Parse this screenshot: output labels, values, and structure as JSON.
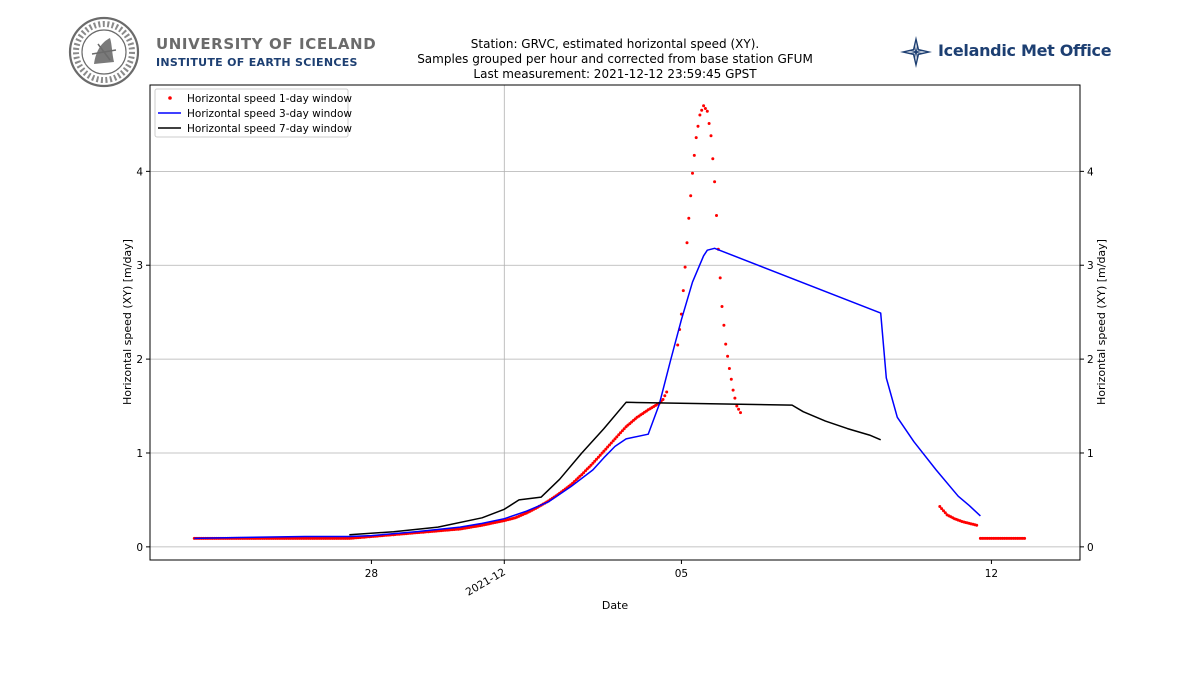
{
  "header": {
    "university_name": "UNIVERSITY OF ICELAND",
    "institute_name": "INSTITUTE OF EARTH SCIENCES",
    "met_office_name": "Icelandic Met Office",
    "seal_text": "SIGILLUM UNIVERSITATIS ISLANDIAE"
  },
  "chart_data": {
    "type": "line",
    "title_lines": [
      "Station: GRVC, estimated horizontal speed (XY).",
      "Samples grouped per hour and corrected from base station GFUM",
      "Last measurement: 2021-12-12 23:59:45 GPST"
    ],
    "xlabel": "Date",
    "ylabel_left": "Horizontal speed (XY) [m/day]",
    "ylabel_right": "Horizontal speed (XY) [m/day]",
    "x_range": [
      "2021-11-23",
      "2021-12-14"
    ],
    "ylim": [
      -0.14,
      4.92
    ],
    "x_ticks": [
      {
        "date": "2021-11-28",
        "label": "28",
        "rotated": false
      },
      {
        "date": "2021-12-01",
        "label": "2021-12",
        "rotated": true
      },
      {
        "date": "2021-12-05",
        "label": "05",
        "rotated": false
      },
      {
        "date": "2021-12-12",
        "label": "12",
        "rotated": false
      }
    ],
    "y_ticks": [
      0,
      1,
      2,
      3,
      4
    ],
    "grid": true,
    "legend_position": "top-left",
    "colors": {
      "series_1day": "#ff0000",
      "series_3day": "#0000ff",
      "series_7day": "#000000",
      "grid": "#b0b0b0"
    },
    "series": [
      {
        "name": "Horizontal speed 1-day window",
        "style": "scatter",
        "segments": [
          [
            [
              "2021-11-24 00:00",
              0.09
            ],
            [
              "2021-11-25 00:00",
              0.09
            ],
            [
              "2021-11-26 00:00",
              0.09
            ],
            [
              "2021-11-27 00:00",
              0.09
            ],
            [
              "2021-11-27 12:00",
              0.09
            ],
            [
              "2021-11-28 00:00",
              0.11
            ],
            [
              "2021-11-28 12:00",
              0.13
            ],
            [
              "2021-11-29 00:00",
              0.15
            ],
            [
              "2021-11-29 12:00",
              0.17
            ],
            [
              "2021-11-30 00:00",
              0.19
            ],
            [
              "2021-11-30 12:00",
              0.23
            ],
            [
              "2021-12-01 00:00",
              0.28
            ],
            [
              "2021-12-01 06:00",
              0.31
            ],
            [
              "2021-12-01 12:00",
              0.36
            ],
            [
              "2021-12-01 18:00",
              0.42
            ],
            [
              "2021-12-02 00:00",
              0.49
            ],
            [
              "2021-12-02 06:00",
              0.57
            ],
            [
              "2021-12-02 12:00",
              0.66
            ],
            [
              "2021-12-02 18:00",
              0.77
            ],
            [
              "2021-12-03 00:00",
              0.89
            ],
            [
              "2021-12-03 06:00",
              1.02
            ],
            [
              "2021-12-03 12:00",
              1.15
            ],
            [
              "2021-12-03 18:00",
              1.28
            ],
            [
              "2021-12-04 00:00",
              1.38
            ],
            [
              "2021-12-04 06:00",
              1.46
            ],
            [
              "2021-12-04 12:00",
              1.53
            ],
            [
              "2021-12-04 14:00",
              1.57
            ],
            [
              "2021-12-04 16:00",
              1.65
            ]
          ],
          [
            [
              "2021-12-04 22:00",
              2.15
            ],
            [
              "2021-12-05 00:00",
              2.48
            ],
            [
              "2021-12-05 02:00",
              2.98
            ],
            [
              "2021-12-05 04:00",
              3.5
            ],
            [
              "2021-12-05 06:00",
              3.98
            ],
            [
              "2021-12-05 08:00",
              4.36
            ],
            [
              "2021-12-05 10:00",
              4.6
            ],
            [
              "2021-12-05 12:00",
              4.7
            ],
            [
              "2021-12-05 14:00",
              4.64
            ],
            [
              "2021-12-05 16:00",
              4.38
            ],
            [
              "2021-12-05 18:00",
              3.89
            ],
            [
              "2021-12-05 20:00",
              3.17
            ],
            [
              "2021-12-05 22:00",
              2.56
            ],
            [
              "2021-12-06 00:00",
              2.16
            ],
            [
              "2021-12-06 02:00",
              1.9
            ],
            [
              "2021-12-06 04:00",
              1.67
            ],
            [
              "2021-12-06 06:00",
              1.5
            ],
            [
              "2021-12-06 08:00",
              1.43
            ]
          ],
          [
            [
              "2021-12-10 20:00",
              0.43
            ],
            [
              "2021-12-11 00:00",
              0.34
            ],
            [
              "2021-12-11 04:00",
              0.3
            ],
            [
              "2021-12-11 08:00",
              0.27
            ],
            [
              "2021-12-11 12:00",
              0.25
            ],
            [
              "2021-12-11 16:00",
              0.23
            ]
          ],
          [
            [
              "2021-12-11 18:00",
              0.09
            ],
            [
              "2021-12-12 00:00",
              0.09
            ],
            [
              "2021-12-12 06:00",
              0.09
            ],
            [
              "2021-12-12 12:00",
              0.09
            ],
            [
              "2021-12-12 18:00",
              0.09
            ]
          ]
        ]
      },
      {
        "name": "Horizontal speed 3-day window",
        "style": "line",
        "segments": [
          [
            [
              "2021-11-24 00:00",
              0.09
            ],
            [
              "2021-11-25 00:00",
              0.1
            ],
            [
              "2021-11-26 12:00",
              0.11
            ],
            [
              "2021-11-27 12:00",
              0.11
            ],
            [
              "2021-11-28 00:00",
              0.12
            ],
            [
              "2021-11-29 00:00",
              0.16
            ],
            [
              "2021-11-30 00:00",
              0.21
            ],
            [
              "2021-11-30 12:00",
              0.25
            ],
            [
              "2021-12-01 00:00",
              0.3
            ],
            [
              "2021-12-01 12:00",
              0.38
            ],
            [
              "2021-12-02 00:00",
              0.48
            ],
            [
              "2021-12-02 12:00",
              0.64
            ],
            [
              "2021-12-03 00:00",
              0.82
            ],
            [
              "2021-12-03 06:00",
              0.95
            ],
            [
              "2021-12-03 12:00",
              1.07
            ],
            [
              "2021-12-03 18:00",
              1.15
            ],
            [
              "2021-12-04 06:00",
              1.2
            ],
            [
              "2021-12-04 12:00",
              1.52
            ],
            [
              "2021-12-04 18:00",
              1.98
            ],
            [
              "2021-12-05 00:00",
              2.42
            ],
            [
              "2021-12-05 06:00",
              2.82
            ],
            [
              "2021-12-05 12:00",
              3.1
            ],
            [
              "2021-12-05 14:00",
              3.16
            ],
            [
              "2021-12-05 18:00",
              3.18
            ],
            [
              "2021-12-09 12:00",
              2.49
            ],
            [
              "2021-12-09 15:00",
              1.8
            ],
            [
              "2021-12-09 21:00",
              1.38
            ],
            [
              "2021-12-10 06:00",
              1.12
            ],
            [
              "2021-12-10 18:00",
              0.82
            ],
            [
              "2021-12-11 06:00",
              0.54
            ],
            [
              "2021-12-11 12:00",
              0.44
            ],
            [
              "2021-12-11 18:00",
              0.33
            ]
          ]
        ]
      },
      {
        "name": "Horizontal speed 7-day window",
        "style": "line",
        "segments": [
          [
            [
              "2021-11-27 12:00",
              0.13
            ],
            [
              "2021-11-28 12:00",
              0.16
            ],
            [
              "2021-11-29 12:00",
              0.21
            ],
            [
              "2021-11-30 12:00",
              0.31
            ],
            [
              "2021-12-01 00:00",
              0.4
            ],
            [
              "2021-12-01 08:00",
              0.5
            ],
            [
              "2021-12-01 20:00",
              0.53
            ],
            [
              "2021-12-02 06:00",
              0.72
            ],
            [
              "2021-12-02 18:00",
              1.0
            ],
            [
              "2021-12-03 06:00",
              1.26
            ],
            [
              "2021-12-03 18:00",
              1.54
            ],
            [
              "2021-12-07 12:00",
              1.51
            ],
            [
              "2021-12-07 18:00",
              1.44
            ],
            [
              "2021-12-08 06:00",
              1.34
            ],
            [
              "2021-12-08 18:00",
              1.26
            ],
            [
              "2021-12-09 06:00",
              1.19
            ],
            [
              "2021-12-09 12:00",
              1.14
            ]
          ]
        ]
      }
    ]
  }
}
